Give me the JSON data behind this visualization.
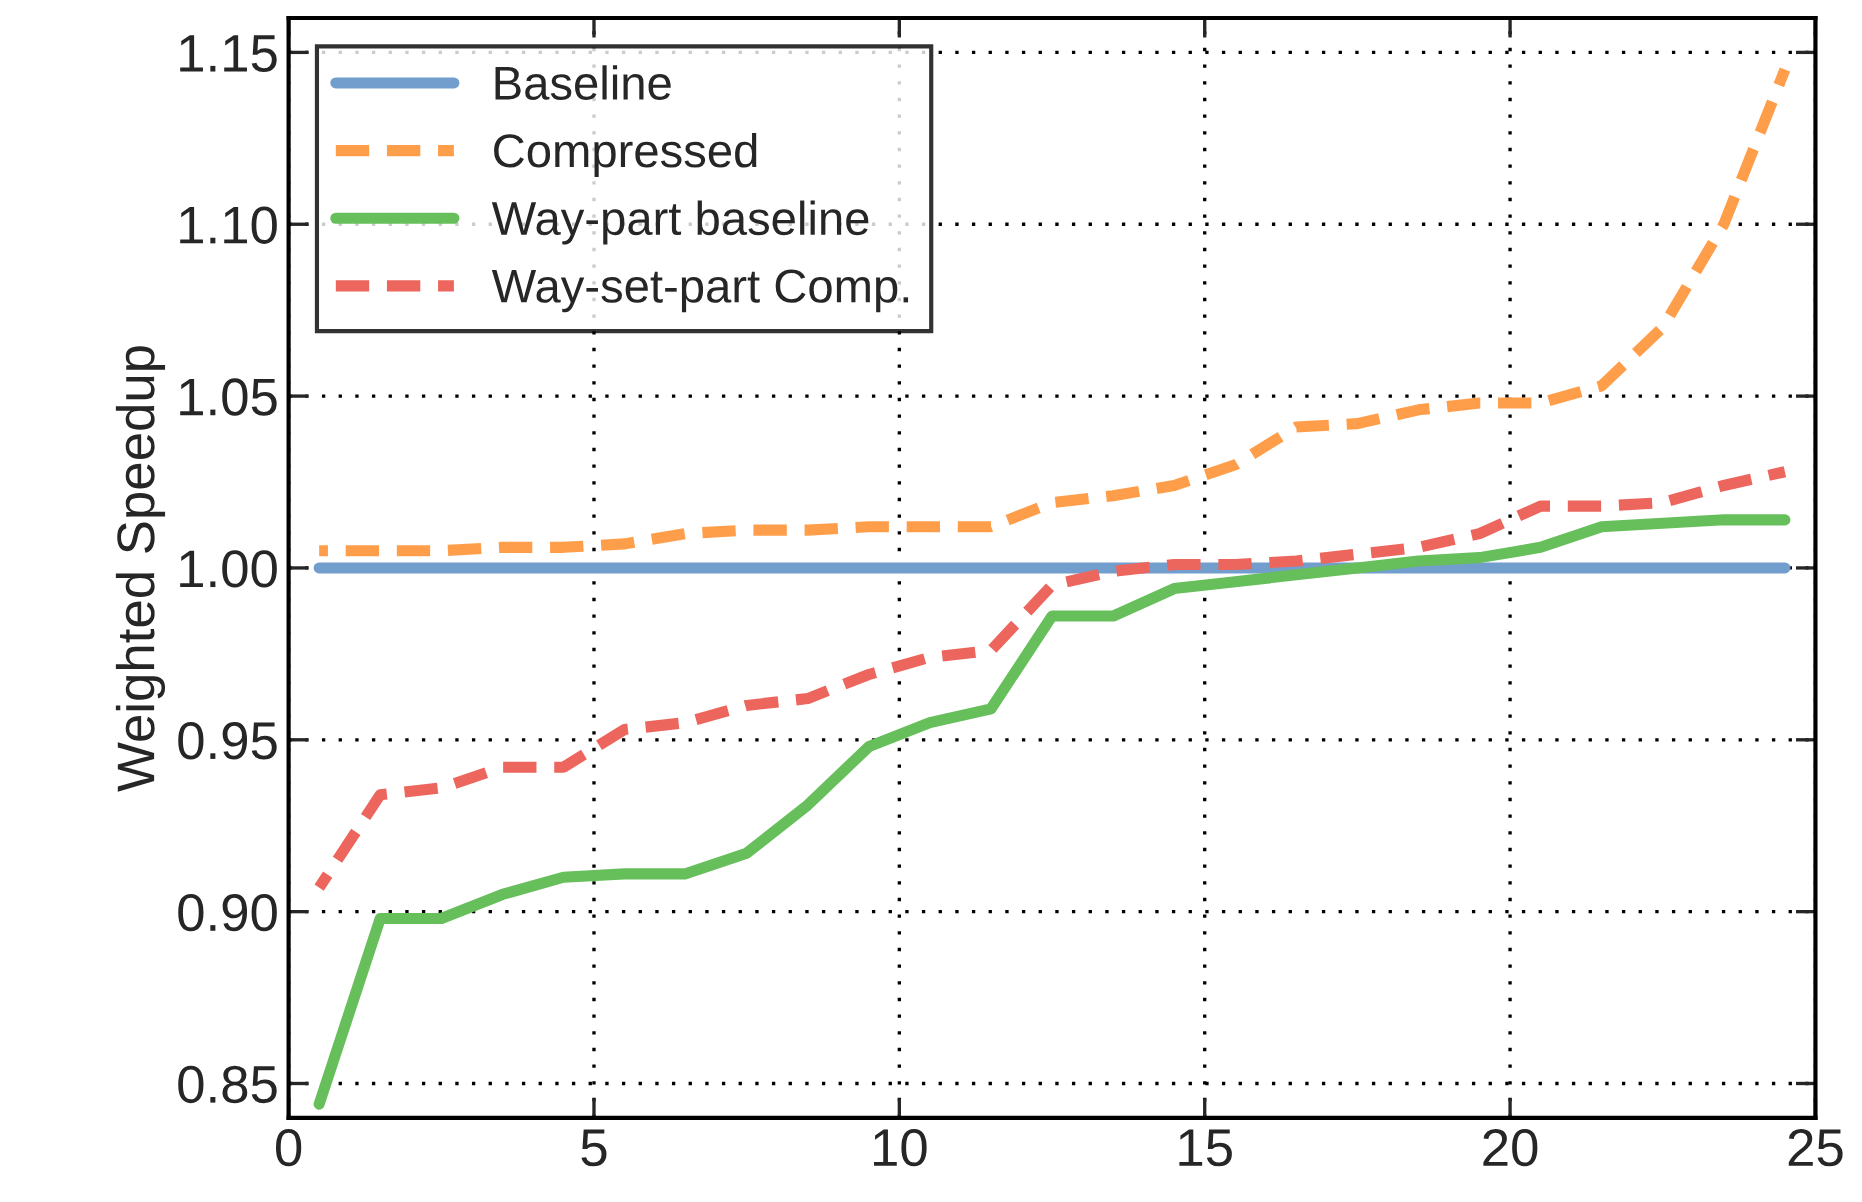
{
  "chart_data": {
    "type": "line",
    "ylabel": "Weighted Speedup",
    "x": [
      0.5,
      1.5,
      2.5,
      3.5,
      4.5,
      5.5,
      6.5,
      7.5,
      8.5,
      9.5,
      10.5,
      11.5,
      12.5,
      13.5,
      14.5,
      15.5,
      16.5,
      17.5,
      18.5,
      19.5,
      20.5,
      21.5,
      22.5,
      23.5,
      24.5
    ],
    "series": [
      {
        "name": "Baseline",
        "color": "#729ece",
        "line_style": "solid",
        "values": [
          1.0,
          1.0,
          1.0,
          1.0,
          1.0,
          1.0,
          1.0,
          1.0,
          1.0,
          1.0,
          1.0,
          1.0,
          1.0,
          1.0,
          1.0,
          1.0,
          1.0,
          1.0,
          1.0,
          1.0,
          1.0,
          1.0,
          1.0,
          1.0,
          1.0
        ]
      },
      {
        "name": "Compressed",
        "color": "#ff9e4a",
        "line_style": "dashed",
        "values": [
          1.005,
          1.005,
          1.005,
          1.006,
          1.006,
          1.007,
          1.01,
          1.011,
          1.011,
          1.012,
          1.012,
          1.012,
          1.019,
          1.021,
          1.024,
          1.03,
          1.041,
          1.042,
          1.046,
          1.048,
          1.048,
          1.053,
          1.07,
          1.1,
          1.145
        ]
      },
      {
        "name": "Way-part baseline",
        "color": "#67bf5c",
        "line_style": "solid",
        "values": [
          0.844,
          0.898,
          0.898,
          0.905,
          0.91,
          0.911,
          0.911,
          0.917,
          0.931,
          0.948,
          0.955,
          0.959,
          0.986,
          0.986,
          0.994,
          0.996,
          0.998,
          1.0,
          1.002,
          1.003,
          1.006,
          1.012,
          1.013,
          1.014,
          1.014
        ]
      },
      {
        "name": "Way-set-part Comp.",
        "color": "#ed665d",
        "line_style": "dashed",
        "values": [
          0.907,
          0.934,
          0.936,
          0.942,
          0.942,
          0.953,
          0.955,
          0.96,
          0.962,
          0.969,
          0.974,
          0.976,
          0.995,
          0.999,
          1.001,
          1.001,
          1.002,
          1.004,
          1.006,
          1.01,
          1.018,
          1.018,
          1.019,
          1.024,
          1.028
        ]
      }
    ],
    "xlim": [
      0,
      25
    ],
    "xticks": [
      0,
      5,
      10,
      15,
      20,
      25
    ],
    "ylim": [
      0.84,
      1.16
    ],
    "yticks": [
      0.85,
      {
        "value": 0.9,
        "label": "0.90"
      },
      0.95,
      {
        "value": 1.0,
        "label": "1.00"
      },
      1.05,
      {
        "value": 1.1,
        "label": "1.10"
      },
      1.15
    ],
    "grid": true,
    "legend": "top left"
  }
}
